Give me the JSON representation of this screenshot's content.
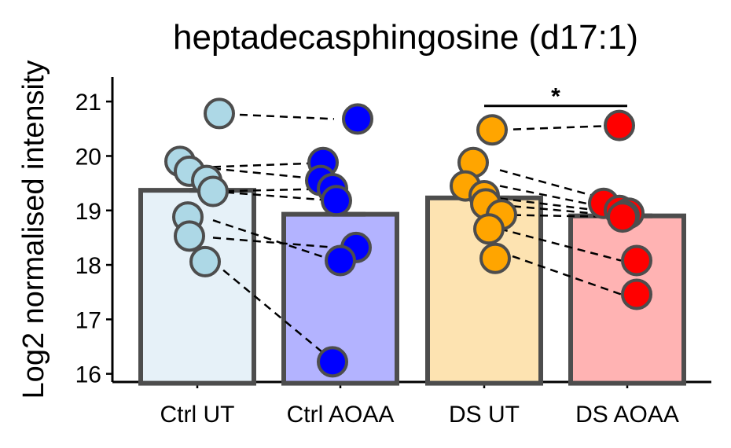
{
  "chart_data": {
    "type": "bar",
    "title": "heptadecasphingosine (d17:1)",
    "ylabel": "Log2 normalised intensity",
    "xlabel": "",
    "ylim": [
      15.85,
      21.45
    ],
    "baseline": 16,
    "yticks": [
      16,
      17,
      18,
      19,
      20,
      21
    ],
    "categories": [
      "Ctrl UT",
      "Ctrl AOAA",
      "DS UT",
      "DS AOAA"
    ],
    "values": [
      19.37,
      18.93,
      19.23,
      18.9
    ],
    "bar_colors": [
      "#e6f1f8",
      "#b3b3ff",
      "#fde3b1",
      "#ffb3b3"
    ],
    "point_colors": [
      "#add8e6",
      "#0000ff",
      "#ffa500",
      "#ff0000"
    ],
    "edge_color": "#4d4d4d",
    "points": [
      [
        20.78,
        19.9,
        19.72,
        19.55,
        19.35,
        18.88,
        18.53,
        18.06
      ],
      [
        20.68,
        19.88,
        19.55,
        19.4,
        19.18,
        18.32,
        18.08,
        16.22
      ],
      [
        20.48,
        19.88,
        19.45,
        19.27,
        19.12,
        18.92,
        18.66,
        18.12
      ],
      [
        20.56,
        19.13,
        19.0,
        18.95,
        18.9,
        18.88,
        18.08,
        17.46
      ]
    ],
    "pairs_left": [
      [
        20.78,
        20.68
      ],
      [
        19.8,
        19.88
      ],
      [
        19.77,
        19.55
      ],
      [
        19.35,
        19.4
      ],
      [
        19.35,
        19.18
      ],
      [
        18.5,
        18.32
      ],
      [
        18.82,
        18.08
      ],
      [
        18.06,
        16.22
      ]
    ],
    "pairs_right": [
      [
        20.48,
        20.56
      ],
      [
        19.74,
        19.13
      ],
      [
        19.45,
        19.0
      ],
      [
        19.22,
        18.95
      ],
      [
        19.1,
        18.9
      ],
      [
        18.92,
        18.88
      ],
      [
        18.66,
        18.08
      ],
      [
        18.24,
        17.46
      ]
    ],
    "significance": [
      {
        "from": 2,
        "to": 3,
        "y": 20.92,
        "label": "*"
      }
    ]
  }
}
